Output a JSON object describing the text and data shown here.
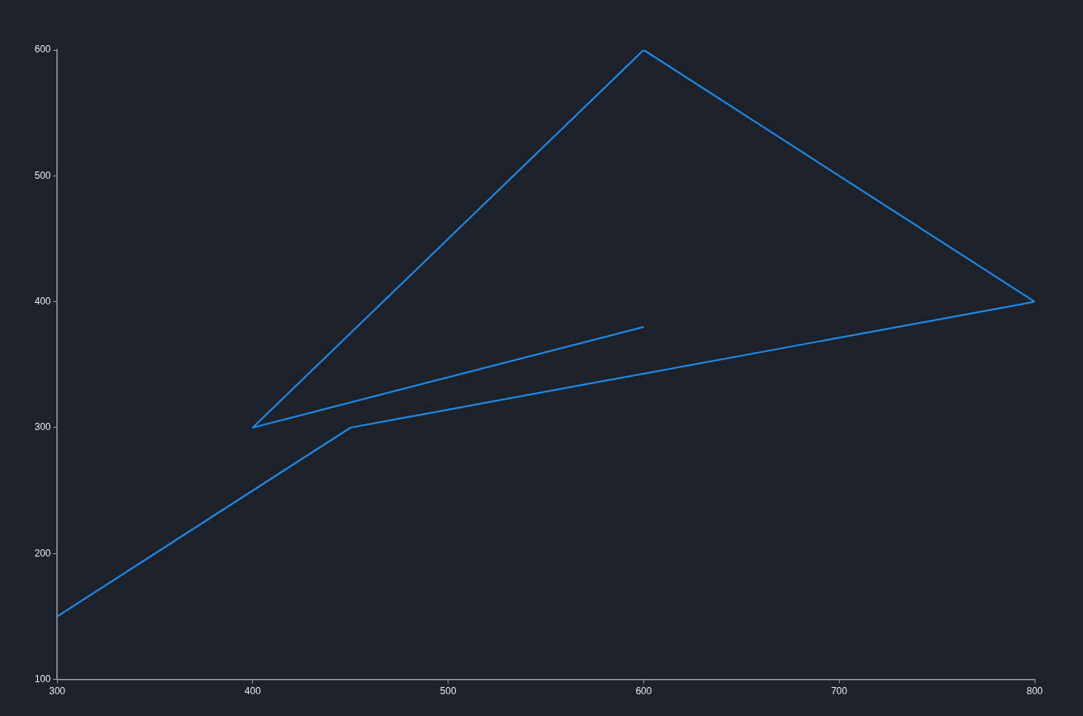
{
  "chart_data": {
    "type": "line",
    "x": [
      300,
      450,
      800,
      600,
      400,
      600
    ],
    "values": [
      150,
      300,
      400,
      600,
      300,
      380
    ],
    "color": "#1e88e5",
    "xlim": [
      300,
      800
    ],
    "ylim": [
      100,
      600
    ],
    "xticks": [
      300,
      400,
      500,
      600,
      700,
      800
    ],
    "yticks": [
      100,
      200,
      300,
      400,
      500,
      600
    ],
    "grid": false,
    "marker": "none"
  }
}
